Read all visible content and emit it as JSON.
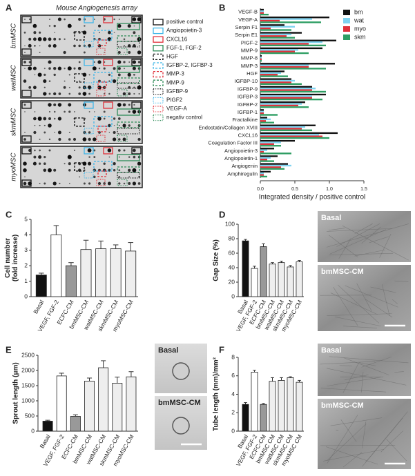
{
  "panel_a": {
    "label": "A",
    "title": "Mouse Angiogenesis array",
    "rows": [
      "bmMSC",
      "watMSC",
      "skmMSC",
      "myoMSC"
    ],
    "legend": [
      {
        "name": "positive control",
        "color": "#111111",
        "style": "solid"
      },
      {
        "name": "Angiopoietin-3",
        "color": "#3fb6e8",
        "style": "solid"
      },
      {
        "name": "CXCL16",
        "color": "#e0303a",
        "style": "solid"
      },
      {
        "name": "FGF-1, FGF-2",
        "color": "#2e8b57",
        "style": "solid"
      },
      {
        "name": "HGF",
        "color": "#111111",
        "style": "dashed"
      },
      {
        "name": "IGFBP-2, IGFBP-3",
        "color": "#3fb6e8",
        "style": "dashed"
      },
      {
        "name": "MMP-3",
        "color": "#e0303a",
        "style": "dashed"
      },
      {
        "name": "MMP-9",
        "color": "#2e8b57",
        "style": "dashed"
      },
      {
        "name": "IGFBP-9",
        "color": "#111111",
        "style": "dotted"
      },
      {
        "name": "PIGF2",
        "color": "#3fb6e8",
        "style": "dotted"
      },
      {
        "name": "VEGF-A",
        "color": "#e0303a",
        "style": "dotted"
      },
      {
        "name": "negativ control",
        "color": "#2e8b57",
        "style": "dotted"
      }
    ]
  },
  "chart_data": [
    {
      "type": "barh",
      "label": "B",
      "xlabel": "Integrated density / positive control",
      "categories": [
        "VEGF-B",
        "VEGF-A",
        "Serpin F1",
        "Serpin E1",
        "PIGF-2",
        "MMP-9",
        "MMP-8",
        "MMP-3",
        "HGF",
        "IGFBP-10",
        "IGFBP-9",
        "IGFBP-3",
        "IGFBP-2",
        "IGFBP-1",
        "Fractalkine",
        "Endostatin/Collagen XVIII",
        "CXCL16",
        "Coagulation Factor III",
        "Angiopoietin-3",
        "Angiopoietin-1",
        "Angiogenin",
        "Amphiregulin"
      ],
      "series": [
        {
          "name": "bm",
          "color": "#111111",
          "values": [
            0.05,
            1.0,
            0.35,
            0.6,
            1.1,
            0.9,
            0.02,
            1.08,
            0.35,
            0.45,
            0.75,
            0.95,
            0.65,
            0.05,
            0.1,
            0.8,
            1.12,
            0.5,
            0.2,
            0.25,
            0.4,
            0.15
          ]
        },
        {
          "name": "wat",
          "color": "#7fd3f0",
          "values": [
            0.05,
            0.75,
            0.5,
            0.45,
            0.9,
            0.55,
            0.02,
            0.7,
            0.3,
            0.5,
            0.8,
            0.75,
            0.6,
            0.05,
            0.15,
            0.65,
            0.85,
            0.3,
            0.1,
            0.15,
            0.45,
            0.05
          ]
        },
        {
          "name": "myo",
          "color": "#e0303a",
          "values": [
            0.05,
            0.28,
            0.15,
            0.38,
            0.7,
            0.5,
            0.02,
            0.7,
            0.25,
            0.45,
            0.75,
            0.75,
            0.55,
            0.05,
            0.08,
            0.6,
            0.9,
            0.2,
            0.05,
            0.1,
            0.3,
            0.05
          ]
        },
        {
          "name": "skm",
          "color": "#2e9e63",
          "values": [
            0.12,
            0.88,
            0.45,
            0.5,
            0.95,
            0.7,
            0.02,
            0.95,
            0.4,
            0.6,
            0.95,
            0.9,
            0.7,
            0.25,
            0.2,
            0.75,
            1.0,
            0.3,
            0.45,
            0.2,
            0.35,
            0.1
          ]
        }
      ],
      "xlim": [
        0,
        1.5
      ],
      "xticks": [
        {
          "value": 0,
          "label": "0.0"
        },
        0.5,
        {
          "value": 1,
          "label": "1.0"
        },
        1.5
      ]
    },
    {
      "type": "bar",
      "label": "C",
      "ylabel": [
        "Cell number",
        "(fold increase)"
      ],
      "categories": [
        "Basal",
        "VEGF, FGF-2",
        "ECFC-CM",
        "bmMSC-CM",
        "watMSC-CM",
        "skmMSC-CM",
        "myoMSC-CM"
      ],
      "values": [
        1.4,
        4.0,
        2.0,
        3.05,
        3.1,
        3.1,
        2.95
      ],
      "errors": [
        0.12,
        0.6,
        0.2,
        0.6,
        0.5,
        0.25,
        0.55
      ],
      "colors": [
        "#111111",
        "#ffffff",
        "#999999",
        "#eeeeee",
        "#eeeeee",
        "#eeeeee",
        "#eeeeee"
      ],
      "ylim": [
        0,
        5
      ],
      "yticks": [
        0,
        1,
        2,
        3,
        4,
        5
      ]
    },
    {
      "type": "bar",
      "label": "D",
      "ylabel": [
        "Gap Size (%)"
      ],
      "images": [
        "Basal",
        "bmMSC-CM"
      ],
      "categories": [
        "Basal",
        "VEGF, FGF-2",
        "ECFC-CM",
        "bmMSC-CM",
        "watMSC-CM",
        "skmMSC-CM",
        "myoMSC-CM"
      ],
      "values": [
        77,
        39,
        69,
        45,
        47,
        41,
        48
      ],
      "errors": [
        2,
        3,
        4,
        2,
        2,
        2,
        2
      ],
      "colors": [
        "#111111",
        "#ffffff",
        "#999999",
        "#eeeeee",
        "#eeeeee",
        "#eeeeee",
        "#eeeeee"
      ],
      "ylim": [
        0,
        100
      ],
      "yticks": [
        0,
        20,
        40,
        60,
        80,
        100
      ]
    },
    {
      "type": "bar",
      "label": "E",
      "ylabel": [
        "Sprout length (μm)"
      ],
      "images": [
        "Basal",
        "bmMSC-CM"
      ],
      "categories": [
        "Basal",
        "VEGF, FGF-2",
        "ECFC-CM",
        "bmMSC-CM",
        "watMSC-CM",
        "skmMSC-CM",
        "myoMSC-CM"
      ],
      "values": [
        330,
        1820,
        490,
        1650,
        2090,
        1580,
        1790
      ],
      "errors": [
        30,
        90,
        50,
        100,
        230,
        200,
        170
      ],
      "colors": [
        "#111111",
        "#ffffff",
        "#999999",
        "#eeeeee",
        "#eeeeee",
        "#eeeeee",
        "#eeeeee"
      ],
      "ylim": [
        0,
        2500
      ],
      "yticks": [
        0,
        500,
        1000,
        1500,
        2000,
        2500
      ]
    },
    {
      "type": "bar",
      "label": "F",
      "ylabel": [
        "Tube length (mm)/mm²"
      ],
      "images": [
        "Basal",
        "bmMSC-CM"
      ],
      "categories": [
        "Basal",
        "VEGF, FGF-2",
        "ECFC-CM",
        "bmMSC CM",
        "watMSC CM",
        "skmMSC CM",
        "myoMSC CM"
      ],
      "values": [
        2.9,
        6.4,
        2.9,
        5.4,
        5.5,
        5.8,
        5.3
      ],
      "errors": [
        0.2,
        0.2,
        0.1,
        0.4,
        0.3,
        0.1,
        0.2
      ],
      "colors": [
        "#111111",
        "#ffffff",
        "#999999",
        "#eeeeee",
        "#eeeeee",
        "#eeeeee",
        "#eeeeee"
      ],
      "ylim": [
        0,
        8
      ],
      "yticks": [
        0,
        2,
        4,
        6,
        8
      ]
    }
  ]
}
